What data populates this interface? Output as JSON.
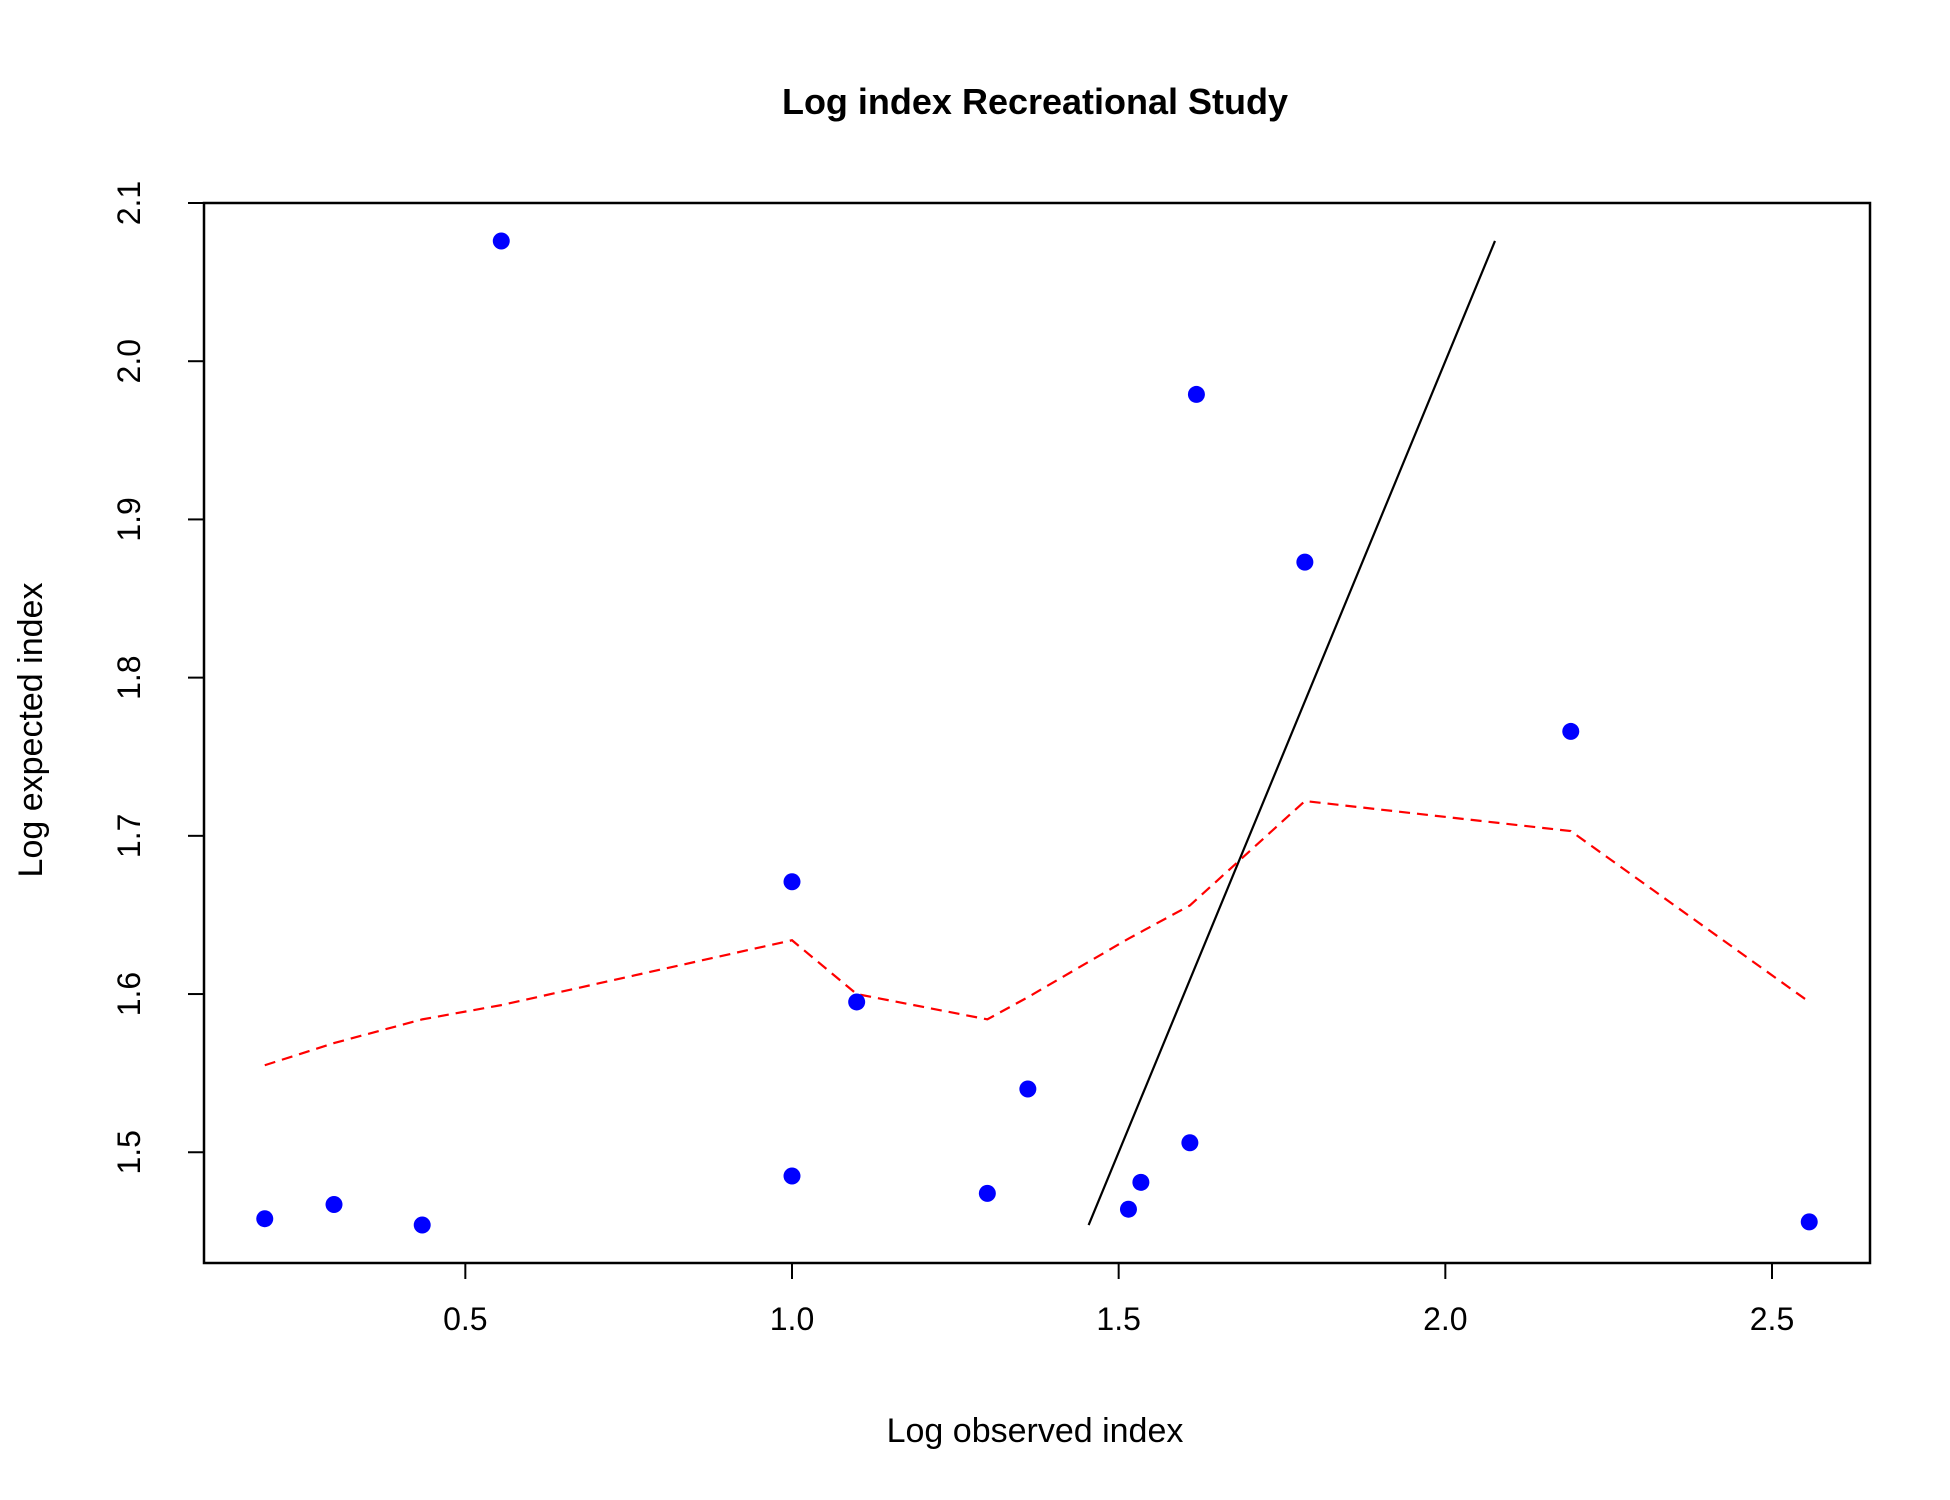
{
  "chart_data": {
    "type": "scatter",
    "title": "Log index Recreational Study",
    "xlabel": "Log observed index",
    "ylabel": "Log expected index",
    "xlim": [
      0.1,
      2.65
    ],
    "ylim": [
      1.43,
      2.1
    ],
    "x_ticks": [
      "0.5",
      "1.0",
      "1.5",
      "2.0",
      "2.5"
    ],
    "y_ticks": [
      "1.5",
      "1.6",
      "1.7",
      "1.8",
      "1.9",
      "2.0",
      "2.1"
    ],
    "grid": false,
    "colors": {
      "points": "#0000ff",
      "smoother": "#ff0000",
      "reference": "#000000"
    },
    "series": [
      {
        "kind": "points",
        "x": [
          0.193,
          0.299,
          0.434,
          0.555,
          1.0,
          1.0,
          1.099,
          1.299,
          1.361,
          1.515,
          1.534,
          1.609,
          1.619,
          1.785,
          2.192,
          2.557
        ],
        "y": [
          1.458,
          1.467,
          1.454,
          2.076,
          1.671,
          1.485,
          1.595,
          1.474,
          1.54,
          1.464,
          1.481,
          1.506,
          1.979,
          1.873,
          1.766,
          1.456
        ]
      },
      {
        "kind": "smoother",
        "x": [
          0.193,
          0.299,
          0.434,
          0.555,
          1.0,
          1.099,
          1.299,
          1.361,
          1.515,
          1.609,
          1.785,
          2.192,
          2.557
        ],
        "y": [
          1.555,
          1.569,
          1.584,
          1.593,
          1.634,
          1.6,
          1.584,
          1.598,
          1.635,
          1.656,
          1.722,
          1.703,
          1.595
        ]
      },
      {
        "kind": "reference",
        "x": [
          1.454,
          2.076
        ],
        "y": [
          1.454,
          2.076
        ]
      }
    ]
  }
}
